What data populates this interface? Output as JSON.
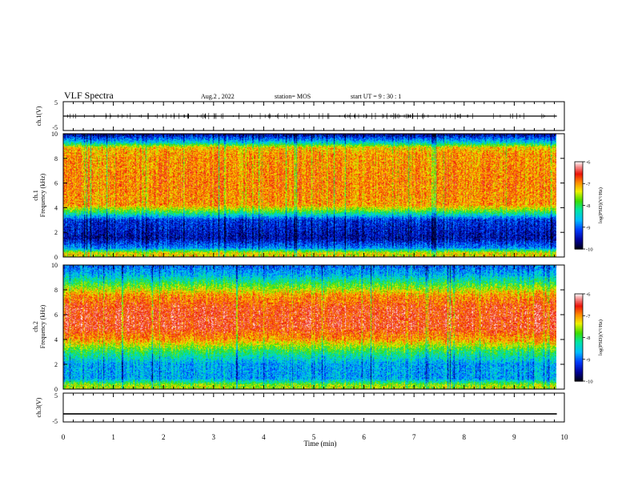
{
  "header": {
    "title": "VLF Spectra",
    "date": "Aug.2 , 2022",
    "station": "station= MOS",
    "start": "start UT =  9 : 30 : 1"
  },
  "chart_data": [
    {
      "type": "line",
      "name": "ch1-waveform",
      "ylabel": "ch.1(V)",
      "ylim": [
        -5,
        5
      ],
      "yticks": [
        "5",
        "-5"
      ],
      "x": [
        0,
        9.85
      ],
      "values": [
        0,
        0
      ],
      "color": "#000000"
    },
    {
      "type": "heatmap",
      "name": "ch1-spectrogram",
      "ylabel": "ch.1\nFrequency (kHz)",
      "ylim": [
        0,
        10
      ],
      "yticks": [
        "0",
        "2",
        "4",
        "6",
        "8",
        "10"
      ],
      "xlim": [
        0,
        10
      ],
      "data_extent_x": [
        0,
        9.85
      ],
      "profile": [
        {
          "f": 0.0,
          "v": -7.3
        },
        {
          "f": 0.3,
          "v": -7.3
        },
        {
          "f": 0.7,
          "v": -8.8
        },
        {
          "f": 1.5,
          "v": -9.5
        },
        {
          "f": 3.0,
          "v": -9.2
        },
        {
          "f": 3.6,
          "v": -8.0
        },
        {
          "f": 4.2,
          "v": -7.0
        },
        {
          "f": 6.0,
          "v": -6.9
        },
        {
          "f": 8.4,
          "v": -7.0
        },
        {
          "f": 8.9,
          "v": -7.2
        },
        {
          "f": 9.3,
          "v": -8.4
        },
        {
          "f": 10.0,
          "v": -9.6
        }
      ],
      "colorbar": {
        "label": "log(PSD)(V²/Hz)",
        "range": [
          -10,
          -6
        ],
        "ticks": [
          "-6",
          "-7",
          "-8",
          "-9",
          "-10"
        ]
      }
    },
    {
      "type": "heatmap",
      "name": "ch2-spectrogram",
      "ylabel": "ch.2\nFrequency (kHz)",
      "ylim": [
        0,
        10
      ],
      "yticks": [
        "0",
        "2",
        "4",
        "6",
        "8",
        "10"
      ],
      "xlim": [
        0,
        10
      ],
      "data_extent_x": [
        0,
        9.85
      ],
      "profile": [
        {
          "f": 0.0,
          "v": -7.5
        },
        {
          "f": 0.3,
          "v": -7.6
        },
        {
          "f": 0.8,
          "v": -8.7
        },
        {
          "f": 2.0,
          "v": -8.7
        },
        {
          "f": 3.0,
          "v": -8.0
        },
        {
          "f": 4.0,
          "v": -7.0
        },
        {
          "f": 5.0,
          "v": -6.55
        },
        {
          "f": 6.5,
          "v": -6.6
        },
        {
          "f": 7.6,
          "v": -7.0
        },
        {
          "f": 8.4,
          "v": -7.8
        },
        {
          "f": 9.2,
          "v": -8.6
        },
        {
          "f": 10.0,
          "v": -9.0
        }
      ],
      "colorbar": {
        "label": "log(PSD)(V²/Hz)",
        "range": [
          -10,
          -6
        ],
        "ticks": [
          "-6",
          "-7",
          "-8",
          "-9",
          "-10"
        ]
      }
    },
    {
      "type": "line",
      "name": "ch3-waveform",
      "ylabel": "ch.3(V)",
      "ylim": [
        -5,
        5
      ],
      "yticks": [
        "5",
        "-5"
      ],
      "x": [
        0,
        9.85
      ],
      "values": [
        -2.2,
        -2.2
      ],
      "color": "#000000"
    }
  ],
  "xaxis": {
    "label": "Time (min)",
    "ticks": [
      "0",
      "1",
      "2",
      "3",
      "4",
      "5",
      "6",
      "7",
      "8",
      "9",
      "10"
    ]
  }
}
